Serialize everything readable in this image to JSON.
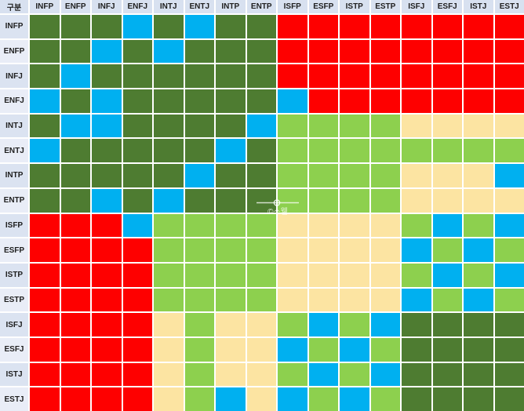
{
  "table": {
    "corner_label": "구분",
    "column_headers": [
      "INFP",
      "ENFP",
      "INFJ",
      "ENFJ",
      "INTJ",
      "ENTJ",
      "INTP",
      "ENTP",
      "ISFP",
      "ESFP",
      "ISTP",
      "ESTP",
      "ISFJ",
      "ESFJ",
      "ISTJ",
      "ESTJ"
    ],
    "row_headers": [
      "INFP",
      "ENFP",
      "INFJ",
      "ENFJ",
      "INTJ",
      "ENTJ",
      "INTP",
      "ENTP",
      "ISFP",
      "ESFP",
      "ISTP",
      "ESTP",
      "ISFJ",
      "ESFJ",
      "ISTJ",
      "ESTJ"
    ]
  },
  "watermark": {
    "text": "©스웰"
  },
  "colors": {
    "header_bg": "#d8e1f0",
    "label_bg_odd": "#dbe3f1",
    "label_bg_even": "#e9edf7",
    "text": "#1f1f1f",
    "gridline": "#ffffff",
    "dark_green": "#4e7c31",
    "light_green": "#8dd04e",
    "blue": "#00b0f0",
    "red": "#fe0000",
    "cream": "#fce4a2"
  },
  "chart_data": {
    "type": "heatmap",
    "title": "",
    "x_categories": [
      "INFP",
      "ENFP",
      "INFJ",
      "ENFJ",
      "INTJ",
      "ENTJ",
      "INTP",
      "ENTP",
      "ISFP",
      "ESFP",
      "ISTP",
      "ESTP",
      "ISFJ",
      "ESFJ",
      "ISTJ",
      "ESTJ"
    ],
    "y_categories": [
      "INFP",
      "ENFP",
      "INFJ",
      "ENFJ",
      "INTJ",
      "ENTJ",
      "INTP",
      "ENTP",
      "ISFP",
      "ESFP",
      "ISTP",
      "ESTP",
      "ISFJ",
      "ESFJ",
      "ISTJ",
      "ESTJ"
    ],
    "level_colors": {
      "G": "#4e7c31",
      "L": "#8dd04e",
      "B": "#00b0f0",
      "R": "#fe0000",
      "C": "#fce4a2"
    },
    "level_color_names": {
      "G": "dark-green",
      "L": "light-green",
      "B": "blue",
      "R": "red",
      "C": "cream"
    },
    "legend_position": "none",
    "grid": true,
    "matrix": [
      [
        "G",
        "G",
        "G",
        "B",
        "G",
        "B",
        "G",
        "G",
        "R",
        "R",
        "R",
        "R",
        "R",
        "R",
        "R",
        "R"
      ],
      [
        "G",
        "G",
        "B",
        "G",
        "B",
        "G",
        "G",
        "G",
        "R",
        "R",
        "R",
        "R",
        "R",
        "R",
        "R",
        "R"
      ],
      [
        "G",
        "B",
        "G",
        "G",
        "G",
        "G",
        "G",
        "G",
        "R",
        "R",
        "R",
        "R",
        "R",
        "R",
        "R",
        "R"
      ],
      [
        "B",
        "G",
        "B",
        "G",
        "G",
        "G",
        "G",
        "G",
        "B",
        "R",
        "R",
        "R",
        "R",
        "R",
        "R",
        "R"
      ],
      [
        "G",
        "B",
        "B",
        "G",
        "G",
        "G",
        "G",
        "B",
        "L",
        "L",
        "L",
        "L",
        "C",
        "C",
        "C",
        "C"
      ],
      [
        "B",
        "G",
        "G",
        "G",
        "G",
        "G",
        "B",
        "G",
        "L",
        "L",
        "L",
        "L",
        "L",
        "L",
        "L",
        "L"
      ],
      [
        "G",
        "G",
        "G",
        "G",
        "G",
        "B",
        "G",
        "G",
        "L",
        "L",
        "L",
        "L",
        "C",
        "C",
        "C",
        "B"
      ],
      [
        "G",
        "G",
        "B",
        "G",
        "B",
        "G",
        "G",
        "G",
        "L",
        "L",
        "L",
        "L",
        "C",
        "C",
        "C",
        "C"
      ],
      [
        "R",
        "R",
        "R",
        "B",
        "L",
        "L",
        "L",
        "L",
        "C",
        "C",
        "C",
        "C",
        "L",
        "B",
        "L",
        "B"
      ],
      [
        "R",
        "R",
        "R",
        "R",
        "L",
        "L",
        "L",
        "L",
        "C",
        "C",
        "C",
        "C",
        "B",
        "L",
        "B",
        "L"
      ],
      [
        "R",
        "R",
        "R",
        "R",
        "L",
        "L",
        "L",
        "L",
        "C",
        "C",
        "C",
        "C",
        "L",
        "B",
        "L",
        "B"
      ],
      [
        "R",
        "R",
        "R",
        "R",
        "L",
        "L",
        "L",
        "L",
        "C",
        "C",
        "C",
        "C",
        "B",
        "L",
        "B",
        "L"
      ],
      [
        "R",
        "R",
        "R",
        "R",
        "C",
        "L",
        "C",
        "C",
        "L",
        "B",
        "L",
        "B",
        "G",
        "G",
        "G",
        "G"
      ],
      [
        "R",
        "R",
        "R",
        "R",
        "C",
        "L",
        "C",
        "C",
        "B",
        "L",
        "B",
        "L",
        "G",
        "G",
        "G",
        "G"
      ],
      [
        "R",
        "R",
        "R",
        "R",
        "C",
        "L",
        "C",
        "C",
        "L",
        "B",
        "L",
        "B",
        "G",
        "G",
        "G",
        "G"
      ],
      [
        "R",
        "R",
        "R",
        "R",
        "C",
        "L",
        "B",
        "C",
        "B",
        "L",
        "B",
        "L",
        "G",
        "G",
        "G",
        "G"
      ]
    ]
  }
}
